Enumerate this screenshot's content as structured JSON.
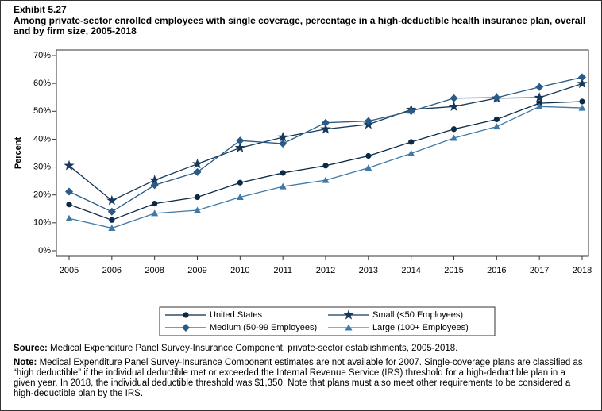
{
  "chart_data": {
    "type": "line",
    "exhibit": "Exhibit 5.27",
    "title": "Among private-sector enrolled employees with single coverage, percentage in a high-deductible health insurance plan, overall and by firm size, 2005-2018",
    "y_label": "Percent",
    "categories": [
      "2005",
      "2006",
      "2008",
      "2009",
      "2010",
      "2011",
      "2012",
      "2013",
      "2014",
      "2015",
      "2016",
      "2017",
      "2018"
    ],
    "ylim": [
      -2,
      72
    ],
    "yticks": [
      {
        "value": 0,
        "label": "0%"
      },
      {
        "value": 10,
        "label": "10%"
      },
      {
        "value": 20,
        "label": "20%"
      },
      {
        "value": 30,
        "label": "30%"
      },
      {
        "value": 40,
        "label": "40%"
      },
      {
        "value": 50,
        "label": "50%"
      },
      {
        "value": 60,
        "label": "60%"
      },
      {
        "value": 70,
        "label": "70%"
      }
    ],
    "grid": false,
    "series": [
      {
        "name": "United States",
        "color": "#0b2a45",
        "marker": "circle",
        "values": [
          16.6,
          11.0,
          16.9,
          19.2,
          24.4,
          27.9,
          30.5,
          34.0,
          39.0,
          43.6,
          47.1,
          52.9,
          53.5
        ]
      },
      {
        "name": "Small (<50 Employees)",
        "color": "#17385a",
        "marker": "star",
        "values": [
          30.5,
          18.0,
          25.3,
          31.1,
          36.9,
          40.7,
          43.6,
          45.3,
          50.6,
          51.7,
          54.7,
          54.9,
          59.9
        ]
      },
      {
        "name": "Medium (50-99 Employees)",
        "color": "#2a5a86",
        "marker": "diamond",
        "values": [
          21.2,
          14.0,
          23.5,
          28.2,
          39.5,
          38.4,
          45.9,
          46.5,
          50.0,
          54.7,
          54.9,
          58.7,
          62.2
        ]
      },
      {
        "name": "Large (100+ Employees)",
        "color": "#3e79a8",
        "marker": "triangle",
        "values": [
          11.6,
          8.1,
          13.4,
          14.5,
          19.2,
          23.0,
          25.3,
          29.7,
          34.9,
          40.4,
          44.5,
          51.7,
          51.2
        ]
      }
    ],
    "source_label": "Source:",
    "source": "Medical Expenditure Panel Survey-Insurance Component, private-sector establishments, 2005-2018.",
    "note_label": "Note:",
    "note": "Medical Expenditure Panel Survey-Insurance Component estimates are not available for 2007. Single-coverage plans are classified as “high deductible” if the individual deductible met or exceeded the Internal Revenue Service (IRS) threshold for a high-deductible plan in a given year. In 2018, the individual deductible threshold was $1,350. Note that plans must also meet other requirements to be considered a high-deductible plan by the IRS."
  }
}
